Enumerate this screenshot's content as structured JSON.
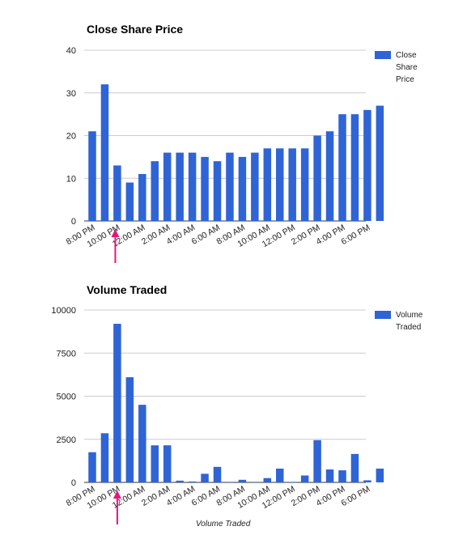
{
  "chart_data": [
    {
      "type": "bar",
      "title": "Close Share Price",
      "xlabel": "",
      "ylabel": "",
      "ylim": [
        0,
        40
      ],
      "yticks": [
        0,
        10,
        20,
        30,
        40
      ],
      "tick_labels": [
        "8:00 PM",
        "10:00 PM",
        "12:00 AM",
        "2:00 AM",
        "4:00 AM",
        "6:00 AM",
        "8:00 AM",
        "10:00 AM",
        "12:00 PM",
        "2:00 PM",
        "4:00 PM",
        "6:00 PM"
      ],
      "series": [
        {
          "name": "Close Share Price",
          "color": "#2f64d6",
          "values": [
            21,
            32,
            13,
            9,
            11,
            14,
            16,
            16,
            16,
            15,
            14,
            16,
            15,
            16,
            17,
            17,
            17,
            17,
            20,
            21,
            25,
            25,
            26,
            27
          ]
        }
      ],
      "legend": [
        "Close",
        "Share",
        "Price"
      ],
      "legend_position": "right",
      "grid": true,
      "annotation": {
        "type": "arrow",
        "color": "#e6157a",
        "at_bar_index": 1
      }
    },
    {
      "type": "bar",
      "title": "Volume Traded",
      "xlabel": "Volume Traded",
      "ylabel": "",
      "ylim": [
        0,
        10000
      ],
      "yticks": [
        0,
        2500,
        5000,
        7500,
        10000
      ],
      "tick_labels": [
        "8:00 PM",
        "10:00 PM",
        "12:00 AM",
        "2:00 AM",
        "4:00 AM",
        "6:00 AM",
        "8:00 AM",
        "10:00 AM",
        "12:00 PM",
        "2:00 PM",
        "4:00 PM",
        "6:00 PM"
      ],
      "series": [
        {
          "name": "Volume Traded",
          "color": "#2f64d6",
          "values": [
            1750,
            2850,
            9200,
            6100,
            4500,
            2150,
            2150,
            100,
            50,
            500,
            900,
            30,
            150,
            30,
            250,
            800,
            30,
            400,
            2450,
            750,
            700,
            1650,
            120,
            800
          ]
        }
      ],
      "legend": [
        "Volume",
        "Traded"
      ],
      "legend_position": "right",
      "grid": true,
      "annotation": {
        "type": "arrow",
        "color": "#e6157a",
        "at_bar_index": 2
      }
    }
  ]
}
